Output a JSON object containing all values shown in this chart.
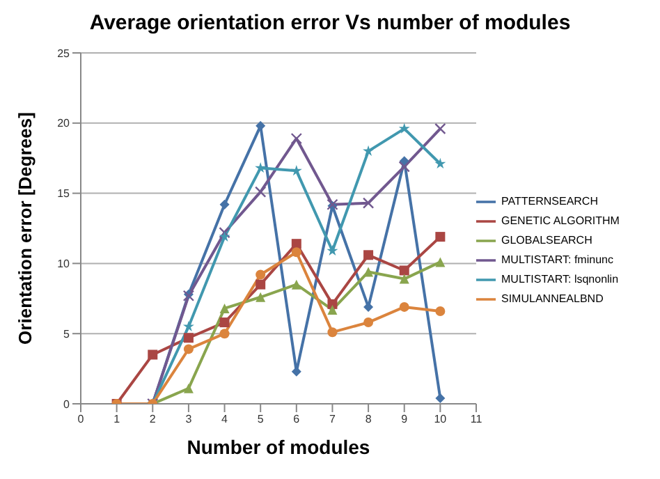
{
  "chart_data": {
    "type": "line",
    "title": "Average orientation error Vs number of modules",
    "xlabel": "Number of modules",
    "ylabel": "Orientation error [Degrees]",
    "x": [
      1,
      2,
      3,
      4,
      5,
      6,
      7,
      8,
      9,
      10
    ],
    "xlim": [
      0,
      11
    ],
    "xticks": [
      0,
      1,
      2,
      3,
      4,
      5,
      6,
      7,
      8,
      9,
      10,
      11
    ],
    "ylim": [
      0,
      25
    ],
    "yticks": [
      0,
      5,
      10,
      15,
      20,
      25
    ],
    "grid": "y",
    "legend": "right",
    "series": [
      {
        "name": "PATTERNSEARCH",
        "color": "#4572a7",
        "marker": "diamond",
        "values": [
          null,
          0,
          7.8,
          14.2,
          19.8,
          2.3,
          14.1,
          6.9,
          17.3,
          0.4
        ]
      },
      {
        "name": "GENETIC ALGORITHM",
        "color": "#aa4643",
        "marker": "square",
        "values": [
          0,
          3.5,
          4.7,
          5.8,
          8.5,
          11.4,
          7.1,
          10.6,
          9.5,
          11.9
        ]
      },
      {
        "name": "GLOBALSEARCH",
        "color": "#89a54e",
        "marker": "triangle",
        "values": [
          null,
          0,
          1.1,
          6.8,
          7.6,
          8.5,
          6.7,
          9.4,
          8.9,
          10.1
        ]
      },
      {
        "name": "MULTISTART: fminunc",
        "color": "#71588f",
        "marker": "cross",
        "values": [
          null,
          0,
          7.7,
          12.2,
          15.1,
          18.9,
          14.2,
          14.3,
          16.9,
          19.6
        ]
      },
      {
        "name": "MULTISTART: lsqnonlin",
        "color": "#4198af",
        "marker": "star",
        "values": [
          null,
          0,
          5.5,
          11.9,
          16.8,
          16.6,
          10.9,
          18.0,
          19.6,
          17.1
        ]
      },
      {
        "name": "SIMULANNEALBND",
        "color": "#db843d",
        "marker": "circle",
        "values": [
          0,
          0,
          3.9,
          5.0,
          9.2,
          10.8,
          5.1,
          5.8,
          6.9,
          6.6
        ]
      }
    ]
  }
}
